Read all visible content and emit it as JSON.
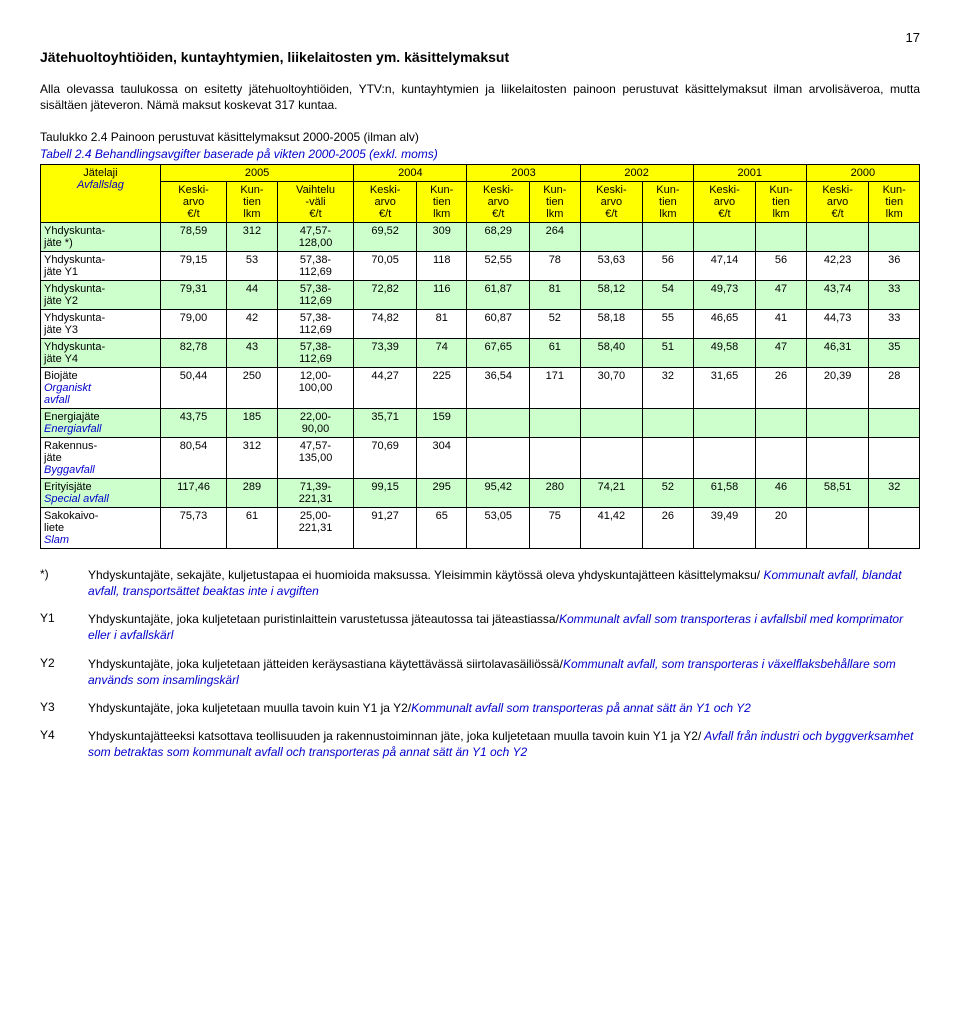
{
  "page_number": "17",
  "heading": "Jätehuoltoyhtiöiden, kuntayhtymien, liikelaitosten ym. käsittelymaksut",
  "intro": "Alla olevassa taulukossa on esitetty jätehuoltoyhtiöiden, YTV:n, kuntayhtymien ja liikelaitosten painoon perustuvat käsittelymaksut ilman arvolisäveroa, mutta sisältäen jäteveron. Nämä maksut koskevat 317 kuntaa.",
  "table_caption_fi": "Taulukko 2.4 Painoon perustuvat käsittelymaksut 2000-2005 (ilman alv)",
  "table_caption_sv": "Tabell 2.4  Behandlingsavgifter baserade på vikten 2000-2005 (exkl. moms)",
  "header_year_cells": [
    "Jätelaji",
    "2005",
    "2004",
    "2003",
    "2002",
    "2001",
    "2000"
  ],
  "header_year_cells_sub": "Avfallslag",
  "colhdr": {
    "keskiarvo": "Keski-\narvo\n€/t",
    "kuntien": "Kun-\ntien\nlkm",
    "vaihtelu": "Vaihtelu\n-väli\n€/t"
  },
  "table": {
    "colors": {
      "header_bg": "#ffff00",
      "row_even_bg": "#ccffcc",
      "row_odd_bg": "#ffffff"
    },
    "rows": [
      {
        "label_fi": "Yhdyskunta-\njäte *)",
        "label_sv": "",
        "v": [
          "78,59",
          "312",
          "47,57-\n128,00",
          "69,52",
          "309",
          "68,29",
          "264",
          "",
          "",
          "",
          "",
          "",
          ""
        ]
      },
      {
        "label_fi": "Yhdyskunta-\njäte Y1",
        "label_sv": "",
        "v": [
          "79,15",
          "53",
          "57,38-\n112,69",
          "70,05",
          "118",
          "52,55",
          "78",
          "53,63",
          "56",
          "47,14",
          "56",
          "42,23",
          "36"
        ]
      },
      {
        "label_fi": "Yhdyskunta-\njäte Y2",
        "label_sv": "",
        "v": [
          "79,31",
          "44",
          "57,38-\n112,69",
          "72,82",
          "116",
          "61,87",
          "81",
          "58,12",
          "54",
          "49,73",
          "47",
          "43,74",
          "33"
        ]
      },
      {
        "label_fi": "Yhdyskunta-\njäte Y3",
        "label_sv": "",
        "v": [
          "79,00",
          "42",
          "57,38-\n112,69",
          "74,82",
          "81",
          "60,87",
          "52",
          "58,18",
          "55",
          "46,65",
          "41",
          "44,73",
          "33"
        ]
      },
      {
        "label_fi": "Yhdyskunta-\njäte Y4",
        "label_sv": "",
        "v": [
          "82,78",
          "43",
          "57,38-\n112,69",
          "73,39",
          "74",
          "67,65",
          "61",
          "58,40",
          "51",
          "49,58",
          "47",
          "46,31",
          "35"
        ]
      },
      {
        "label_fi": "Biojäte",
        "label_sv": "Organiskt\navfall",
        "v": [
          "50,44",
          "250",
          "12,00-\n100,00",
          "44,27",
          "225",
          "36,54",
          "171",
          "30,70",
          "32",
          "31,65",
          "26",
          "20,39",
          "28"
        ]
      },
      {
        "label_fi": "Energiajäte",
        "label_sv": "Energiavfall",
        "v": [
          "43,75",
          "185",
          "22,00-\n90,00",
          "35,71",
          "159",
          "",
          "",
          "",
          "",
          "",
          "",
          "",
          ""
        ]
      },
      {
        "label_fi": "Rakennus-\njäte",
        "label_sv": "Byggavfall",
        "v": [
          "80,54",
          "312",
          "47,57-\n135,00",
          "70,69",
          "304",
          "",
          "",
          "",
          "",
          "",
          "",
          "",
          ""
        ]
      },
      {
        "label_fi": "Erityisjäte",
        "label_sv": "Special avfall",
        "v": [
          "117,46",
          "289",
          "71,39-\n221,31",
          "99,15",
          "295",
          "95,42",
          "280",
          "74,21",
          "52",
          "61,58",
          "46",
          "58,51",
          "32"
        ]
      },
      {
        "label_fi": "Sakokaivo-\nliete",
        "label_sv": "Slam",
        "v": [
          "75,73",
          "61",
          "25,00-\n221,31",
          "91,27",
          "65",
          "53,05",
          "75",
          "41,42",
          "26",
          "39,49",
          "20",
          "",
          ""
        ]
      }
    ]
  },
  "footnotes": [
    {
      "key": "*)",
      "fi": "Yhdyskuntajäte, sekajäte, kuljetustapaa ei huomioida maksussa. Yleisimmin käytössä oleva yhdyskuntajätteen käsittelymaksu/",
      "sv": " Kommunalt avfall, blandat avfall, transportsättet beaktas  inte i avgiften"
    },
    {
      "key": "Y1",
      "fi": "Yhdyskuntajäte, joka kuljetetaan puristinlaittein varustetussa jäteautossa tai jäteastiassa/",
      "sv": "Kommunalt avfall som transporteras i avfallsbil med komprimator eller i avfallskärl"
    },
    {
      "key": "Y2",
      "fi": "Yhdyskuntajäte, joka kuljetetaan jätteiden keräysastiana käytettävässä siirtolavasäiliössä/",
      "sv": "Kommunalt avfall, som transporteras i växelflaksbehållare som används som insamlingskärl"
    },
    {
      "key": "Y3",
      "fi": "Yhdyskuntajäte, joka kuljetetaan muulla tavoin kuin Y1 ja Y2/",
      "sv": "Kommunalt avfall som transporteras på annat sätt än Y1 och Y2"
    },
    {
      "key": "Y4",
      "fi": "Yhdyskuntajätteeksi katsottava teollisuuden ja rakennustoiminnan jäte, joka kuljetetaan muulla tavoin kuin Y1 ja Y2/",
      "sv": " Avfall från industri och byggverksamhet som betraktas som kommunalt avfall och transporteras på annat sätt än Y1 och Y2"
    }
  ]
}
